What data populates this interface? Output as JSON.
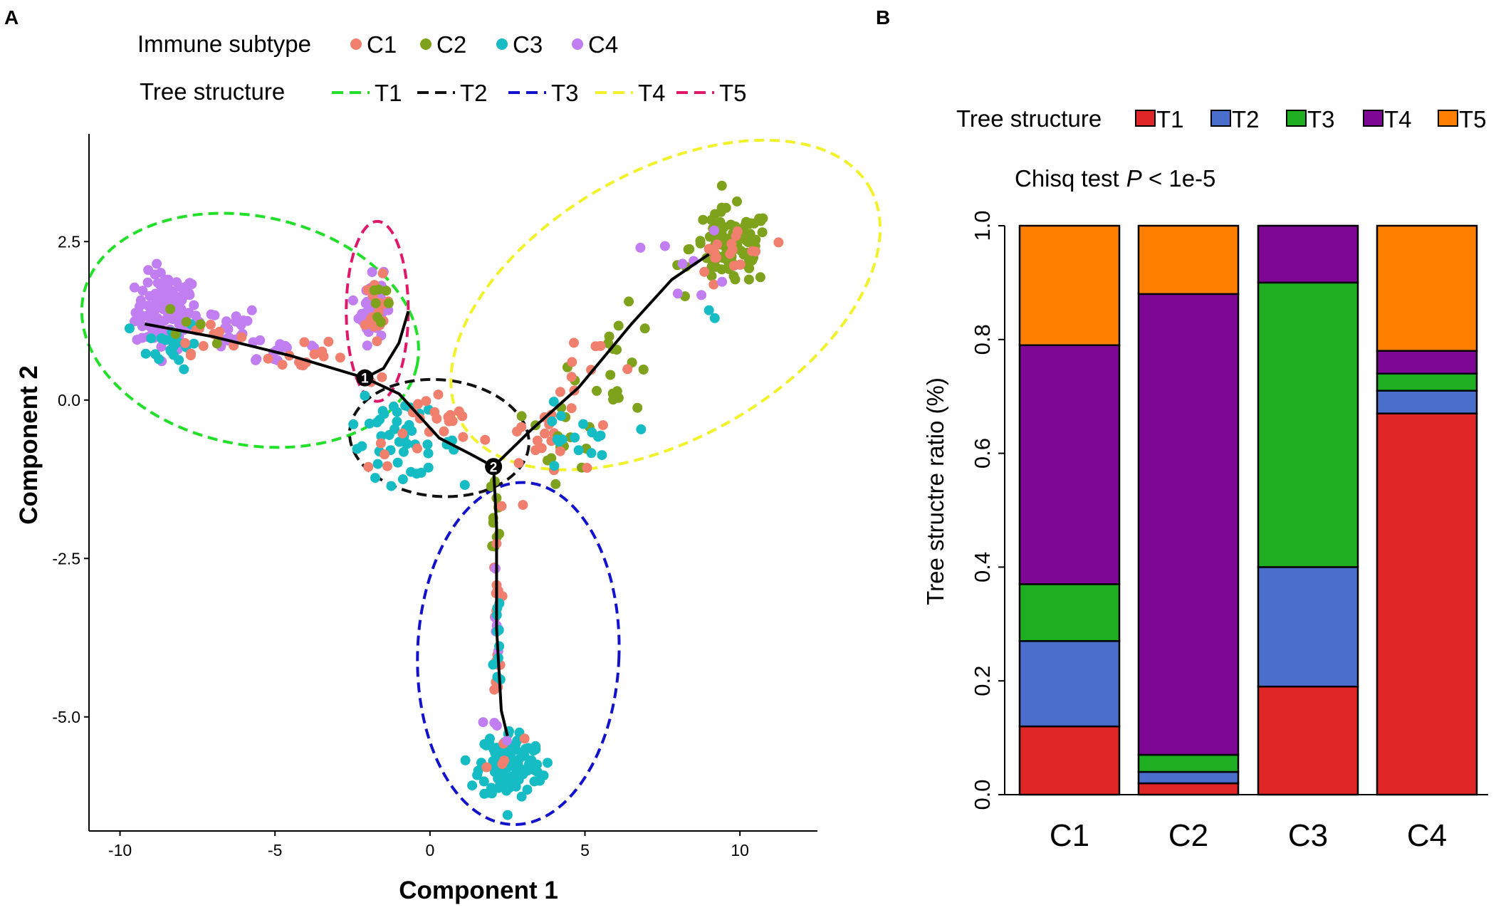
{
  "panels": {
    "a": "A",
    "b": "B"
  },
  "colors": {
    "C1": "#f07f6e",
    "C2": "#7ea21c",
    "C3": "#16bcc3",
    "C4": "#c07ef0",
    "T1_ellipse": "#22e02a",
    "T2_ellipse": "#111111",
    "T3_ellipse": "#1212cc",
    "T4_ellipse": "#f2f22a",
    "T5_ellipse": "#e0186a",
    "T1_bar": "#e02626",
    "T2_bar": "#4a6ecb",
    "T3_bar": "#1fae22",
    "T4_bar": "#7e0895",
    "T5_bar": "#ff8000"
  },
  "chart_data": [
    {
      "type": "scatter",
      "panel": "A",
      "xlabel": "Component 1",
      "ylabel": "Component 2",
      "xlim": [
        -11,
        12.5
      ],
      "ylim": [
        -6.8,
        4.2
      ],
      "xticks": [
        "-10",
        "-5",
        "0",
        "5",
        "10"
      ],
      "yticks": [
        "2.5",
        "0.0",
        "-2.5",
        "-5.0"
      ],
      "legend_subtype": {
        "title": "Immune subtype",
        "items": [
          "C1",
          "C2",
          "C3",
          "C4"
        ]
      },
      "legend_tree": {
        "title": "Tree structure",
        "items": [
          "T1",
          "T2",
          "T3",
          "T4",
          "T5"
        ]
      },
      "branch_nodes": [
        {
          "label": "1",
          "x": -2.1,
          "y": 0.35
        },
        {
          "label": "2",
          "x": 2.05,
          "y": -1.05
        }
      ],
      "trajectory": [
        [
          [
            -9.2,
            1.2
          ],
          [
            -7.0,
            1.0
          ],
          [
            -4.5,
            0.7
          ],
          [
            -2.1,
            0.35
          ]
        ],
        [
          [
            -2.1,
            0.35
          ],
          [
            -1.5,
            0.5
          ],
          [
            -1.0,
            0.9
          ],
          [
            -0.7,
            1.4
          ]
        ],
        [
          [
            -2.1,
            0.35
          ],
          [
            -1.0,
            0.1
          ],
          [
            0.3,
            -0.6
          ],
          [
            1.3,
            -0.85
          ],
          [
            2.05,
            -1.05
          ]
        ],
        [
          [
            2.05,
            -1.05
          ],
          [
            3.2,
            -0.5
          ],
          [
            4.8,
            0.2
          ],
          [
            6.5,
            1.2
          ],
          [
            7.8,
            1.9
          ],
          [
            9.0,
            2.3
          ]
        ],
        [
          [
            2.05,
            -1.05
          ],
          [
            2.15,
            -2.0
          ],
          [
            2.15,
            -3.6
          ],
          [
            2.3,
            -4.9
          ],
          [
            2.5,
            -5.3
          ]
        ]
      ],
      "regions": [
        {
          "name": "T1",
          "cx": -5.8,
          "cy": 1.1,
          "rx": 5.5,
          "ry": 1.8,
          "angle_deg": -12
        },
        {
          "name": "T2",
          "cx": 0.3,
          "cy": -0.6,
          "rx": 2.9,
          "ry": 0.92,
          "angle_deg": -5
        },
        {
          "name": "T3",
          "cx": 2.85,
          "cy": -4.0,
          "rx": 3.25,
          "ry": 2.7,
          "angle_deg": -2
        },
        {
          "name": "T4",
          "cx": 7.6,
          "cy": 1.5,
          "rx": 7.6,
          "ry": 2.1,
          "angle_deg": 30
        },
        {
          "name": "T5",
          "cx": -1.7,
          "cy": 1.4,
          "rx": 1.0,
          "ry": 1.42,
          "angle_deg": 0
        }
      ],
      "clusters": [
        {
          "subtype": "C4",
          "n": 120,
          "cx": -8.5,
          "cy": 1.4,
          "sx": 0.5,
          "sy": 0.3
        },
        {
          "subtype": "C4",
          "n": 22,
          "cx": -6.8,
          "cy": 1.15,
          "sx": 0.7,
          "sy": 0.18
        },
        {
          "subtype": "C4",
          "n": 14,
          "cx": -4.8,
          "cy": 0.8,
          "sx": 0.9,
          "sy": 0.14
        },
        {
          "subtype": "C3",
          "n": 22,
          "cx": -8.3,
          "cy": 0.9,
          "sx": 0.4,
          "sy": 0.2
        },
        {
          "subtype": "C1",
          "n": 12,
          "cx": -7.2,
          "cy": 1.05,
          "sx": 0.5,
          "sy": 0.15
        },
        {
          "subtype": "C1",
          "n": 14,
          "cx": -4.0,
          "cy": 0.62,
          "sx": 0.9,
          "sy": 0.13
        },
        {
          "subtype": "C2",
          "n": 5,
          "cx": -7.3,
          "cy": 1.2,
          "sx": 0.6,
          "sy": 0.2
        },
        {
          "subtype": "C4",
          "n": 45,
          "cx": -1.9,
          "cy": 1.5,
          "sx": 0.2,
          "sy": 0.3
        },
        {
          "subtype": "C1",
          "n": 18,
          "cx": -1.7,
          "cy": 1.3,
          "sx": 0.2,
          "sy": 0.3
        },
        {
          "subtype": "C2",
          "n": 7,
          "cx": -1.6,
          "cy": 1.6,
          "sx": 0.2,
          "sy": 0.3
        },
        {
          "subtype": "C3",
          "n": 40,
          "cx": -0.9,
          "cy": -0.7,
          "sx": 0.9,
          "sy": 0.25
        },
        {
          "subtype": "C1",
          "n": 22,
          "cx": 0.0,
          "cy": -0.5,
          "sx": 1.0,
          "sy": 0.3
        },
        {
          "subtype": "C3",
          "n": 6,
          "cx": -1.4,
          "cy": -0.1,
          "sx": 0.5,
          "sy": 0.2
        },
        {
          "subtype": "C2",
          "n": 100,
          "cx": 9.7,
          "cy": 2.4,
          "sx": 0.65,
          "sy": 0.3
        },
        {
          "subtype": "C1",
          "n": 18,
          "cx": 9.8,
          "cy": 2.3,
          "sx": 0.6,
          "sy": 0.28
        },
        {
          "subtype": "C4",
          "n": 8,
          "cx": 8.5,
          "cy": 2.1,
          "sx": 0.6,
          "sy": 0.3
        },
        {
          "subtype": "C3",
          "n": 2,
          "cx": 9.2,
          "cy": 1.5,
          "sx": 0.2,
          "sy": 0.15
        },
        {
          "subtype": "C2",
          "n": 18,
          "cx": 6.0,
          "cy": 0.6,
          "sx": 0.7,
          "sy": 0.4
        },
        {
          "subtype": "C1",
          "n": 14,
          "cx": 5.2,
          "cy": 0.3,
          "sx": 0.9,
          "sy": 0.4
        },
        {
          "subtype": "C2",
          "n": 14,
          "cx": 4.0,
          "cy": -0.6,
          "sx": 0.8,
          "sy": 0.3
        },
        {
          "subtype": "C1",
          "n": 14,
          "cx": 3.4,
          "cy": -0.65,
          "sx": 0.7,
          "sy": 0.25
        },
        {
          "subtype": "C3",
          "n": 16,
          "cx": 4.6,
          "cy": -0.7,
          "sx": 0.7,
          "sy": 0.3
        },
        {
          "subtype": "C2",
          "n": 10,
          "cx": 2.1,
          "cy": -1.8,
          "sx": 0.08,
          "sy": 0.3
        },
        {
          "subtype": "C1",
          "n": 18,
          "cx": 2.15,
          "cy": -3.5,
          "sx": 0.08,
          "sy": 0.9
        },
        {
          "subtype": "C4",
          "n": 6,
          "cx": 2.1,
          "cy": -3.8,
          "sx": 0.08,
          "sy": 0.7
        },
        {
          "subtype": "C3",
          "n": 10,
          "cx": 2.2,
          "cy": -4.2,
          "sx": 0.08,
          "sy": 0.6
        },
        {
          "subtype": "C3",
          "n": 115,
          "cx": 2.6,
          "cy": -5.75,
          "sx": 0.5,
          "sy": 0.28
        },
        {
          "subtype": "C1",
          "n": 5,
          "cx": 2.4,
          "cy": -5.5,
          "sx": 0.3,
          "sy": 0.2
        },
        {
          "subtype": "C4",
          "n": 4,
          "cx": 2.5,
          "cy": -5.3,
          "sx": 0.3,
          "sy": 0.2
        }
      ]
    },
    {
      "type": "bar",
      "stacked": true,
      "panel": "B",
      "categories": [
        "C1",
        "C2",
        "C3",
        "C4"
      ],
      "ylabel": "Tree structre ratio (%)",
      "ylim": [
        0,
        1
      ],
      "yticks": [
        "0.0",
        "0.2",
        "0.4",
        "0.6",
        "0.8",
        "1.0"
      ],
      "legend": {
        "title": "Tree structure",
        "items": [
          "T1",
          "T2",
          "T3",
          "T4",
          "T5"
        ]
      },
      "annotation_prefix": "Chisq test",
      "annotation_p": "P",
      "annotation_suffix": " < 1e-5",
      "series": [
        {
          "name": "T1",
          "values": [
            0.12,
            0.02,
            0.19,
            0.67
          ]
        },
        {
          "name": "T2",
          "values": [
            0.15,
            0.02,
            0.21,
            0.04
          ]
        },
        {
          "name": "T3",
          "values": [
            0.1,
            0.03,
            0.5,
            0.03
          ]
        },
        {
          "name": "T4",
          "values": [
            0.42,
            0.81,
            0.1,
            0.04
          ]
        },
        {
          "name": "T5",
          "values": [
            0.21,
            0.12,
            0.0,
            0.22
          ]
        }
      ]
    }
  ]
}
